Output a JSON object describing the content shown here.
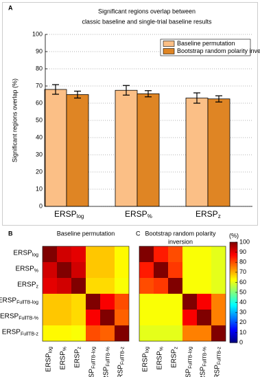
{
  "chart_data": [
    {
      "type": "bar",
      "panel_label": "A",
      "title": [
        "Significant regions overlap between",
        "classic baseline and single-trial baseline results"
      ],
      "ylabel": "Significant regions overlap (%)",
      "categories": [
        {
          "text": "ERSP",
          "subscript": "log"
        },
        {
          "text": "ERSP",
          "subscript": "%"
        },
        {
          "text": "ERSP",
          "subscript": "z"
        }
      ],
      "series": [
        {
          "name": "Baseline permutation",
          "color": "#fbbf86",
          "values": [
            68,
            67.5,
            63
          ],
          "errors": [
            2.8,
            2.8,
            3
          ]
        },
        {
          "name": "Bootstrap random polarity inversion",
          "color": "#df8524",
          "values": [
            65,
            65.5,
            62.5
          ],
          "errors": [
            2,
            1.8,
            1.8
          ]
        }
      ],
      "ylim": [
        0,
        100
      ],
      "yticks": [
        0,
        10,
        20,
        30,
        40,
        50,
        60,
        70,
        80,
        90,
        100
      ],
      "grid": true,
      "legend": "upper right"
    },
    {
      "type": "heatmap",
      "categories": [
        {
          "text": "ERSP",
          "subscript": "log"
        },
        {
          "text": "ERSP",
          "subscript": "%"
        },
        {
          "text": "ERSP",
          "subscript": "z"
        },
        {
          "text": "ERSP",
          "subscript": "FullTB-log"
        },
        {
          "text": "ERSP",
          "subscript": "FullTB-%"
        },
        {
          "text": "ERSP",
          "subscript": "FullTB-z"
        }
      ],
      "panels": [
        {
          "label": "B",
          "title": [
            "Baseline permutation"
          ],
          "values": [
            [
              100,
              92,
              90,
              68,
              68,
              63
            ],
            [
              92,
              100,
              92,
              68,
              68,
              63
            ],
            [
              90,
              92,
              100,
              66,
              66,
              62
            ],
            [
              68,
              68,
              66,
              100,
              88,
              80
            ],
            [
              68,
              68,
              66,
              88,
              100,
              78
            ],
            [
              63,
              63,
              62,
              80,
              78,
              100
            ]
          ]
        },
        {
          "label": "C",
          "title": [
            "Bootstrap random polarity",
            "inversion"
          ],
          "values": [
            [
              100,
              85,
              80,
              62,
              62,
              60
            ],
            [
              85,
              100,
              82,
              62,
              62,
              60
            ],
            [
              80,
              82,
              100,
              62,
              62,
              60
            ],
            [
              62,
              62,
              62,
              100,
              88,
              75
            ],
            [
              62,
              62,
              62,
              88,
              100,
              75
            ],
            [
              60,
              60,
              60,
              75,
              75,
              100
            ]
          ]
        }
      ],
      "colormap": "jet",
      "clim": [
        0,
        100
      ],
      "cticks": [
        0,
        10,
        20,
        30,
        40,
        50,
        60,
        70,
        80,
        90,
        100
      ],
      "colorbar_label": "(%)"
    }
  ]
}
